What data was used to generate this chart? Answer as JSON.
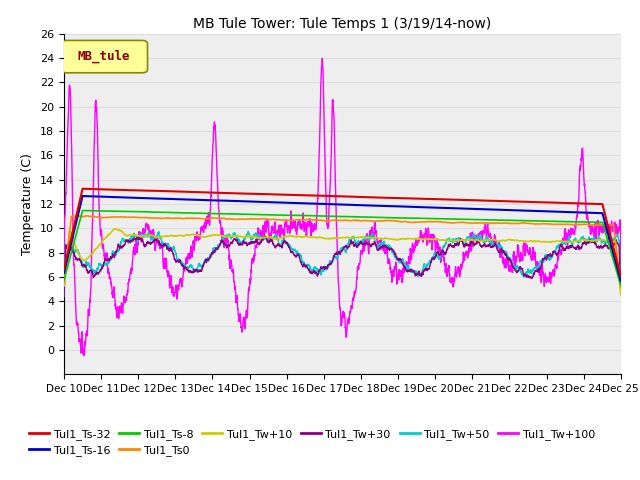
{
  "title": "MB Tule Tower: Tule Temps 1 (3/19/14-now)",
  "ylabel": "Temperature (C)",
  "xlim": [
    0,
    15
  ],
  "ylim": [
    -2,
    26
  ],
  "yticks": [
    0,
    2,
    4,
    6,
    8,
    10,
    12,
    14,
    16,
    18,
    20,
    22,
    24,
    26
  ],
  "xtick_labels": [
    "Dec 10",
    "Dec 11",
    "Dec 12",
    "Dec 13",
    "Dec 14",
    "Dec 15",
    "Dec 16",
    "Dec 17",
    "Dec 18",
    "Dec 19",
    "Dec 20",
    "Dec 21",
    "Dec 22",
    "Dec 23",
    "Dec 24",
    "Dec 25"
  ],
  "legend_label": "MB_tule",
  "series_colors": {
    "Tul1_Ts-32": "#dd0000",
    "Tul1_Ts-16": "#0000cc",
    "Tul1_Ts-8": "#00cc00",
    "Tul1_Ts0": "#ff8800",
    "Tul1_Tw+10": "#cccc00",
    "Tul1_Tw+30": "#880088",
    "Tul1_Tw+50": "#00cccc",
    "Tul1_Tw+100": "#ff00ff"
  },
  "background_color": "#ffffff",
  "plot_bg": "#eeeeee",
  "grid_color": "#dddddd"
}
